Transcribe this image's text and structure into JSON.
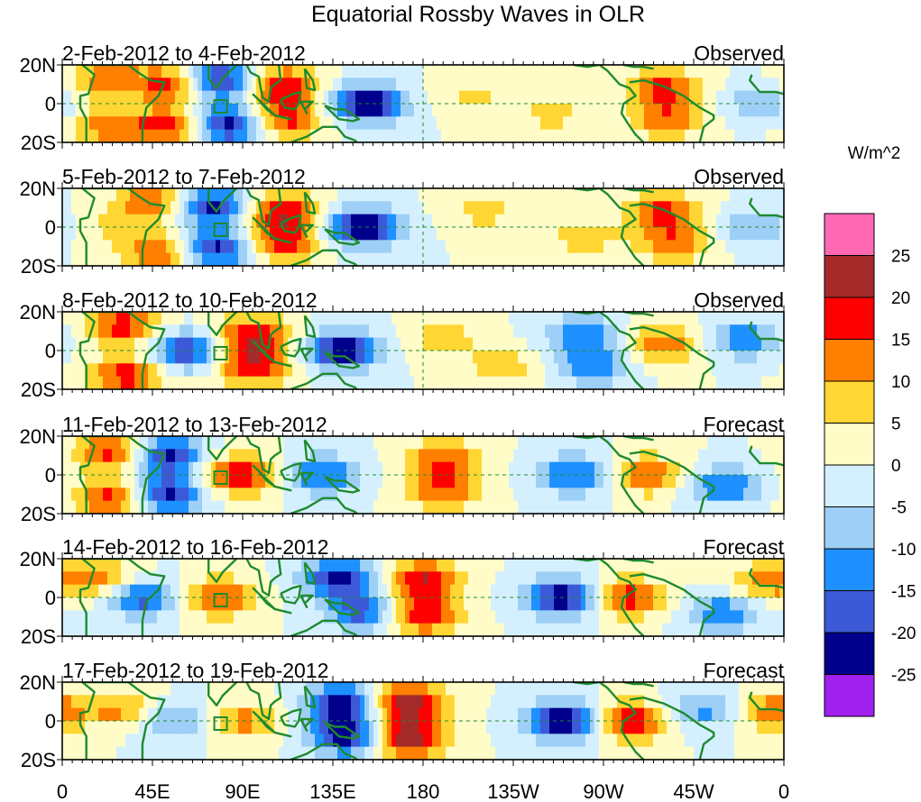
{
  "chart_data": {
    "type": "heatmap",
    "title": "Equatorial Rossby Waves in OLR",
    "units_label": "W/m^2",
    "x_ticks": [
      "0",
      "45E",
      "90E",
      "135E",
      "180",
      "135W",
      "90W",
      "45W",
      "0"
    ],
    "x_range_deg": [
      0,
      360
    ],
    "y_ticks": [
      "20N",
      "0",
      "20S"
    ],
    "y_range_deg": [
      -20,
      20
    ],
    "colorbar": {
      "levels": [
        -25,
        -20,
        -15,
        -10,
        -5,
        0,
        5,
        10,
        15,
        20,
        25
      ],
      "labels": [
        "25",
        "20",
        "15",
        "10",
        "5",
        "0",
        "-5",
        "-10",
        "-15",
        "-20",
        "-25"
      ],
      "colors": [
        "#a020f0",
        "#00008c",
        "#3c5ad8",
        "#1e90ff",
        "#9ecff6",
        "#d4f0ff",
        "#fffcc8",
        "#ffd633",
        "#ff7f00",
        "#ff0000",
        "#a52a2a",
        "#ff69b4"
      ]
    },
    "panels": [
      {
        "period": "2-Feb-2012 to 4-Feb-2012",
        "status": "Observed",
        "anomalies": [
          {
            "lon": 22,
            "lat": 12,
            "value": 14
          },
          {
            "lon": 24,
            "lat": -12,
            "value": 14
          },
          {
            "lon": 55,
            "lat": 10,
            "value": 18
          },
          {
            "lon": 55,
            "lat": -12,
            "value": 18
          },
          {
            "lon": 78,
            "lat": 12,
            "value": -24
          },
          {
            "lon": 82,
            "lat": -11,
            "value": -24
          },
          {
            "lon": 110,
            "lat": 9,
            "value": 20
          },
          {
            "lon": 112,
            "lat": -8,
            "value": 17
          },
          {
            "lon": 152,
            "lat": 0,
            "value": -26
          },
          {
            "lon": 205,
            "lat": 4,
            "value": 6
          },
          {
            "lon": 245,
            "lat": -5,
            "value": 7
          },
          {
            "lon": 300,
            "lat": 8,
            "value": 16
          },
          {
            "lon": 302,
            "lat": -8,
            "value": 14
          },
          {
            "lon": 348,
            "lat": 0,
            "value": -9
          }
        ]
      },
      {
        "period": "5-Feb-2012 to 7-Feb-2012",
        "status": "Observed",
        "anomalies": [
          {
            "lon": 20,
            "lat": 0,
            "value": 5
          },
          {
            "lon": 45,
            "lat": 13,
            "value": 16
          },
          {
            "lon": 48,
            "lat": -13,
            "value": 16
          },
          {
            "lon": 75,
            "lat": 11,
            "value": -22
          },
          {
            "lon": 77,
            "lat": -11,
            "value": -22
          },
          {
            "lon": 110,
            "lat": 8,
            "value": 20
          },
          {
            "lon": 110,
            "lat": -8,
            "value": 18
          },
          {
            "lon": 150,
            "lat": 0,
            "value": -26
          },
          {
            "lon": 210,
            "lat": 8,
            "value": 7
          },
          {
            "lon": 260,
            "lat": -5,
            "value": 8
          },
          {
            "lon": 300,
            "lat": 8,
            "value": 16
          },
          {
            "lon": 305,
            "lat": -8,
            "value": 14
          },
          {
            "lon": 345,
            "lat": 0,
            "value": -10
          }
        ]
      },
      {
        "period": "8-Feb-2012 to 10-Feb-2012",
        "status": "Observed",
        "anomalies": [
          {
            "lon": 30,
            "lat": 13,
            "value": 18
          },
          {
            "lon": 32,
            "lat": -13,
            "value": 18
          },
          {
            "lon": 62,
            "lat": 0,
            "value": -20
          },
          {
            "lon": 95,
            "lat": 8,
            "value": 20
          },
          {
            "lon": 95,
            "lat": -8,
            "value": 20
          },
          {
            "lon": 140,
            "lat": 0,
            "value": -25
          },
          {
            "lon": 190,
            "lat": 6,
            "value": 8
          },
          {
            "lon": 220,
            "lat": -8,
            "value": 8
          },
          {
            "lon": 260,
            "lat": 8,
            "value": -14
          },
          {
            "lon": 265,
            "lat": -8,
            "value": -14
          },
          {
            "lon": 300,
            "lat": 3,
            "value": 15
          },
          {
            "lon": 340,
            "lat": 6,
            "value": -14
          }
        ]
      },
      {
        "period": "11-Feb-2012 to 13-Feb-2012",
        "status": "Forecast",
        "anomalies": [
          {
            "lon": 25,
            "lat": 12,
            "value": 18
          },
          {
            "lon": 25,
            "lat": -12,
            "value": 18
          },
          {
            "lon": 52,
            "lat": 10,
            "value": -22
          },
          {
            "lon": 52,
            "lat": -10,
            "value": -22
          },
          {
            "lon": 88,
            "lat": 0,
            "value": 20
          },
          {
            "lon": 130,
            "lat": 0,
            "value": -16
          },
          {
            "lon": 190,
            "lat": 8,
            "value": 15
          },
          {
            "lon": 190,
            "lat": -8,
            "value": 15
          },
          {
            "lon": 255,
            "lat": 0,
            "value": -17
          },
          {
            "lon": 292,
            "lat": 0,
            "value": 15
          },
          {
            "lon": 330,
            "lat": -6,
            "value": -16
          }
        ]
      },
      {
        "period": "14-Feb-2012 to 16-Feb-2012",
        "status": "Forecast",
        "anomalies": [
          {
            "lon": 20,
            "lat": 10,
            "value": 12
          },
          {
            "lon": 40,
            "lat": 0,
            "value": -18
          },
          {
            "lon": 78,
            "lat": 0,
            "value": 16
          },
          {
            "lon": 138,
            "lat": 10,
            "value": -22
          },
          {
            "lon": 150,
            "lat": -7,
            "value": -18
          },
          {
            "lon": 180,
            "lat": 9,
            "value": 20
          },
          {
            "lon": 180,
            "lat": -9,
            "value": 20
          },
          {
            "lon": 250,
            "lat": 0,
            "value": -24
          },
          {
            "lon": 282,
            "lat": 0,
            "value": 18
          },
          {
            "lon": 330,
            "lat": -8,
            "value": -14
          },
          {
            "lon": 352,
            "lat": 8,
            "value": 12
          }
        ]
      },
      {
        "period": "17-Feb-2012 to 19-Feb-2012",
        "status": "Forecast",
        "anomalies": [
          {
            "lon": 30,
            "lat": 6,
            "value": 12
          },
          {
            "lon": 55,
            "lat": 0,
            "value": -12
          },
          {
            "lon": 90,
            "lat": 0,
            "value": 12
          },
          {
            "lon": 140,
            "lat": 9,
            "value": -24
          },
          {
            "lon": 142,
            "lat": -8,
            "value": -24
          },
          {
            "lon": 172,
            "lat": 9,
            "value": 25
          },
          {
            "lon": 172,
            "lat": -9,
            "value": 25
          },
          {
            "lon": 250,
            "lat": 0,
            "value": -26
          },
          {
            "lon": 283,
            "lat": 0,
            "value": 20
          },
          {
            "lon": 320,
            "lat": 6,
            "value": -12
          },
          {
            "lon": 355,
            "lat": 5,
            "value": 14
          }
        ]
      }
    ]
  }
}
